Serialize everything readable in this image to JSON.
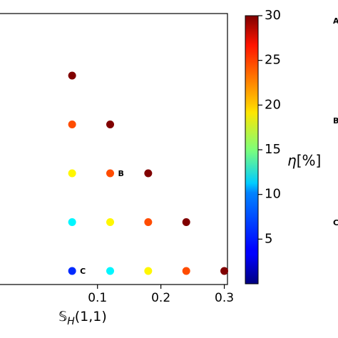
{
  "chart_data": {
    "type": "scatter",
    "xlabel": "𝕊_H(1,1)",
    "xlim": [
      -0.056,
      0.305
    ],
    "x_ticks": [
      {
        "value": 0.1,
        "label": "0.1"
      },
      {
        "value": 0.2,
        "label": "0.2"
      },
      {
        "value": 0.3,
        "label": "0.3"
      }
    ],
    "y_rows": 5,
    "points": [
      {
        "x": 0.06,
        "row": 1,
        "c": 30
      },
      {
        "x": 0.06,
        "row": 2,
        "c": 24
      },
      {
        "x": 0.12,
        "row": 2,
        "c": 30
      },
      {
        "x": 0.06,
        "row": 3,
        "c": 19
      },
      {
        "x": 0.12,
        "row": 3,
        "c": 24,
        "label": "B"
      },
      {
        "x": 0.18,
        "row": 3,
        "c": 30
      },
      {
        "x": 0.06,
        "row": 4,
        "c": 11
      },
      {
        "x": 0.12,
        "row": 4,
        "c": 19
      },
      {
        "x": 0.18,
        "row": 4,
        "c": 24
      },
      {
        "x": 0.24,
        "row": 4,
        "c": 30
      },
      {
        "x": 0.06,
        "row": 5,
        "c": 5,
        "label": "C"
      },
      {
        "x": 0.12,
        "row": 5,
        "c": 11
      },
      {
        "x": 0.18,
        "row": 5,
        "c": 19
      },
      {
        "x": 0.24,
        "row": 5,
        "c": 24
      },
      {
        "x": 0.3,
        "row": 5,
        "c": 30
      }
    ],
    "colorbar": {
      "label_main": "η",
      "label_rest": "[%]",
      "range": [
        0,
        30
      ],
      "colormap": "jet",
      "ticks": [
        5,
        10,
        15,
        20,
        25,
        30
      ]
    },
    "side_labels": [
      "A",
      "B",
      "C"
    ]
  }
}
